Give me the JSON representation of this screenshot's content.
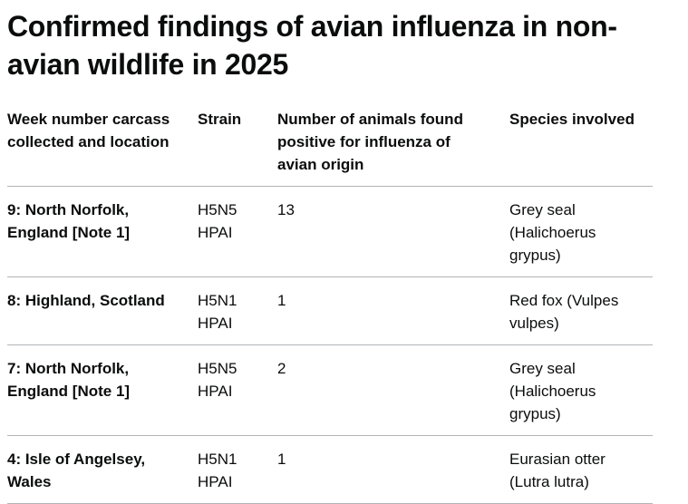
{
  "title": "Confirmed findings of avian influenza in non-avian wildlife in 2025",
  "table": {
    "headers": [
      "Week number carcass collected and location",
      "Strain",
      "Number of animals found positive for influenza of avian origin",
      "Species involved"
    ],
    "rows": [
      [
        "9: North Norfolk, England [Note 1]",
        "H5N5 HPAI",
        13,
        "Grey seal (Halichoerus grypus)"
      ],
      [
        "8: Highland, Scotland",
        "H5N1 HPAI",
        1,
        "Red fox (Vulpes vulpes)"
      ],
      [
        "7: North Norfolk, England [Note 1]",
        "H5N5 HPAI",
        2,
        "Grey seal (Halichoerus grypus)"
      ],
      [
        "4: Isle of Angelsey, Wales",
        "H5N1 HPAI",
        1,
        "Eurasian otter (Lutra lutra)"
      ]
    ]
  }
}
